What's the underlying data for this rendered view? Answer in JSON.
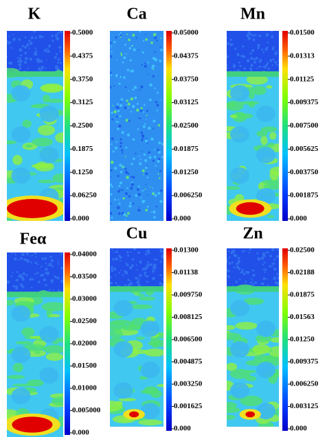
{
  "panels": [
    {
      "title": "K",
      "colorbar_labels": [
        "0.5000",
        "0.4375",
        "0.3750",
        "0.3125",
        "0.2500",
        "0.1875",
        "0.1250",
        "0.06250",
        "0.000"
      ]
    },
    {
      "title": "Ca",
      "colorbar_labels": [
        "0.05000",
        "0.04375",
        "0.03750",
        "0.03125",
        "0.02500",
        "0.01875",
        "0.01250",
        "0.006250",
        "0.000"
      ]
    },
    {
      "title": "Mn",
      "colorbar_labels": [
        "0.01500",
        "0.01313",
        "0.01125",
        "0.009375",
        "0.007500",
        "0.005625",
        "0.003750",
        "0.001875",
        "0.000"
      ]
    },
    {
      "title": "Feα",
      "colorbar_labels": [
        "0.04000",
        "0.03500",
        "0.03000",
        "0.02500",
        "0.02000",
        "0.01500",
        "0.01000",
        "0.005000",
        "0.000"
      ]
    },
    {
      "title": "Cu",
      "colorbar_labels": [
        "0.01300",
        "0.01138",
        "0.009750",
        "0.008125",
        "0.006500",
        "0.004875",
        "0.003250",
        "0.001625",
        "0.000"
      ]
    },
    {
      "title": "Zn",
      "colorbar_labels": [
        "0.02500",
        "0.02188",
        "0.01875",
        "0.01563",
        "0.01250",
        "0.009375",
        "0.006250",
        "0.003125",
        "0.000"
      ]
    }
  ]
}
